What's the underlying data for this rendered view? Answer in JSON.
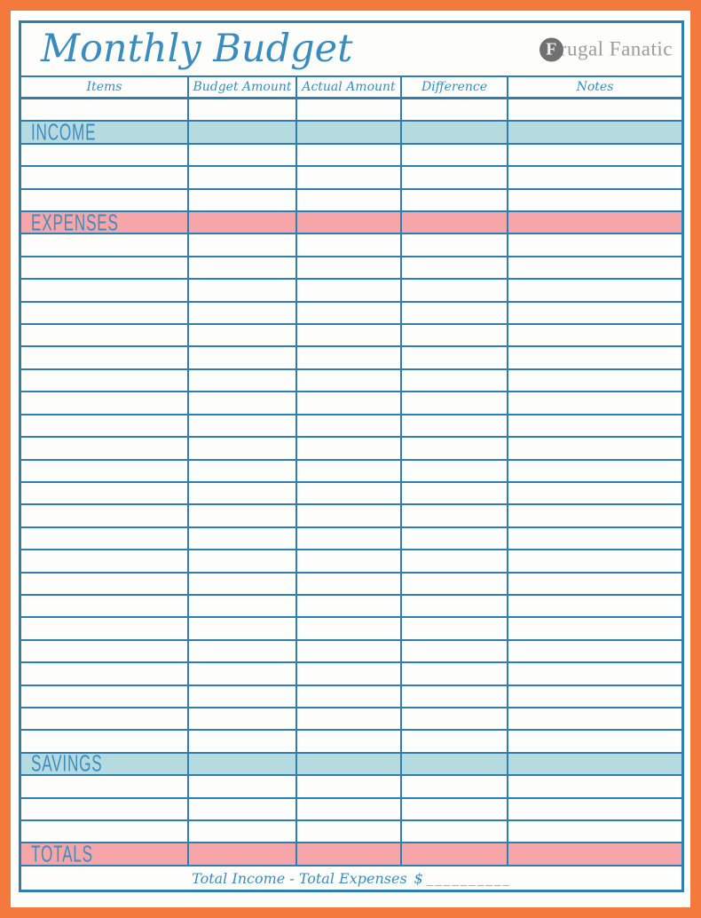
{
  "page": {
    "title": "Monthly Budget",
    "frame_color": "#F4793C",
    "line_color": "#2E7FB0",
    "text_color": "#3A8CBE",
    "teal_color": "#B5DADF",
    "pink_color": "#F6A5A9"
  },
  "logo": {
    "initial": "F",
    "rest": "rugal Fanatic"
  },
  "table": {
    "columns": [
      {
        "label": "Items"
      },
      {
        "label": "Budget Amount"
      },
      {
        "label": "Actual Amount"
      },
      {
        "label": "Difference"
      },
      {
        "label": "Notes"
      }
    ],
    "rows": [
      {
        "type": "empty",
        "count": 1
      },
      {
        "type": "section",
        "label": "INCOME",
        "bg": "teal"
      },
      {
        "type": "empty",
        "count": 3
      },
      {
        "type": "section",
        "label": "EXPENSES",
        "bg": "pink"
      },
      {
        "type": "empty",
        "count": 23
      },
      {
        "type": "section",
        "label": "SAVINGS",
        "bg": "teal"
      },
      {
        "type": "empty",
        "count": 3
      },
      {
        "type": "section",
        "label": "TOTALS",
        "bg": "pink"
      }
    ],
    "footer": {
      "text": "Total Income  -  Total Expenses",
      "amount_prefix": "$",
      "blank": "__________"
    }
  }
}
